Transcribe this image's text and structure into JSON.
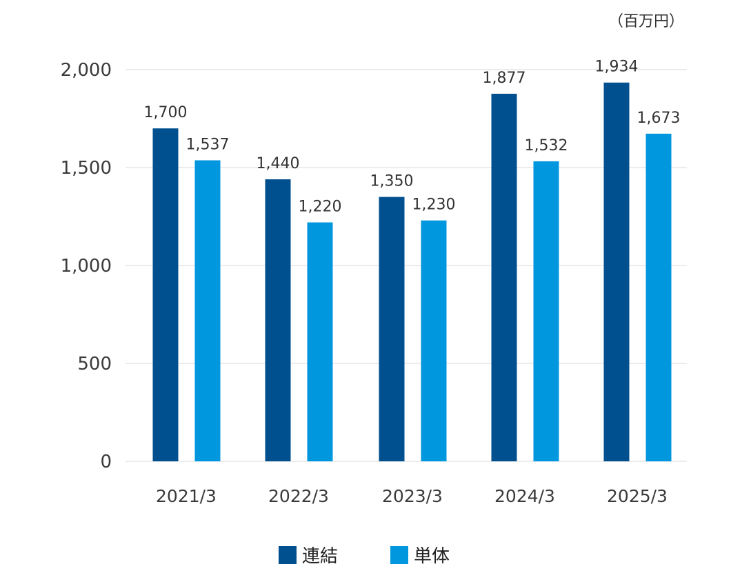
{
  "chart_data": {
    "type": "bar",
    "unit": "（百万円）",
    "categories": [
      "2021/3",
      "2022/3",
      "2023/3",
      "2024/3",
      "2025/3"
    ],
    "series": [
      {
        "name": "連結",
        "color": "#004f8f",
        "values": [
          1700,
          1440,
          1350,
          1877,
          1934
        ],
        "labels": [
          "1,700",
          "1,440",
          "1,350",
          "1,877",
          "1,934"
        ]
      },
      {
        "name": "単体",
        "color": "#0097df",
        "values": [
          1537,
          1220,
          1230,
          1532,
          1673
        ],
        "labels": [
          "1,537",
          "1,220",
          "1,230",
          "1,532",
          "1,673"
        ]
      }
    ],
    "ylim": [
      0,
      2000
    ],
    "yticks": [
      0,
      500,
      1000,
      1500,
      2000
    ],
    "ytick_labels": [
      "0",
      "500",
      "1,000",
      "1,500",
      "2,000"
    ],
    "grid": true,
    "legend": "bottom-center"
  }
}
